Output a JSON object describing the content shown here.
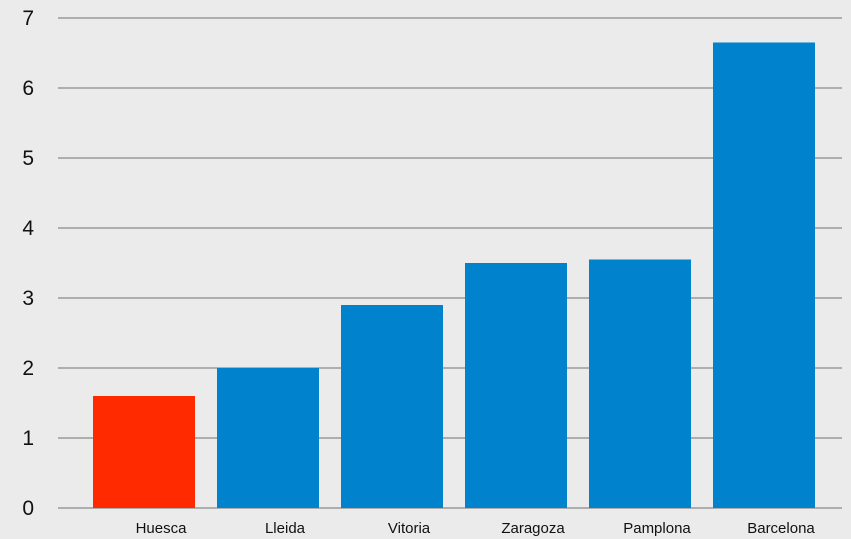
{
  "chart_data": {
    "type": "bar",
    "title": "",
    "xlabel": "",
    "ylabel": "",
    "categories": [
      "Huesca",
      "Lleida",
      "Vitoria",
      "Zaragoza",
      "Pamplona",
      "Barcelona"
    ],
    "values": [
      1.6,
      2.0,
      2.9,
      3.5,
      3.55,
      6.65
    ],
    "ylim": [
      0,
      7
    ],
    "yticks": [
      "0",
      "1",
      "2",
      "3",
      "4",
      "5",
      "6",
      "7"
    ],
    "grid": true,
    "highlight_index": 0,
    "colors": {
      "bar": "#0082cc",
      "highlight": "#ff2a00",
      "grid": "#8a8a8a",
      "background": "#ebebeb"
    }
  }
}
